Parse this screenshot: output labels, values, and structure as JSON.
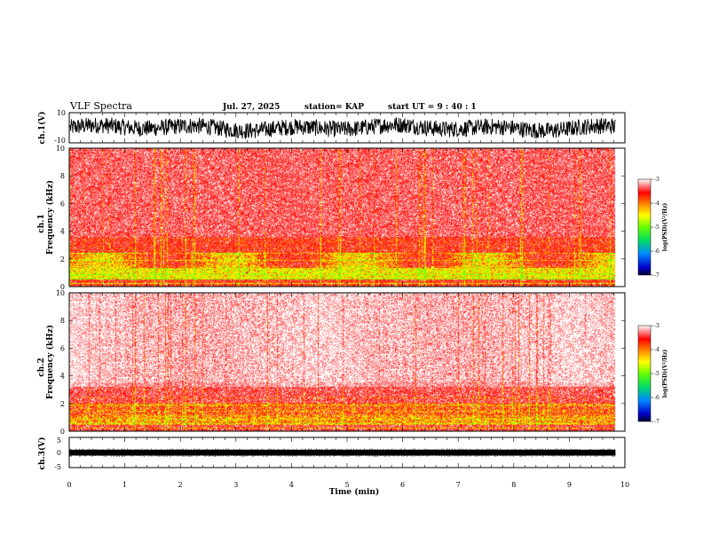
{
  "header": {
    "title": "VLF Spectra",
    "date": "Jul. 27, 2025",
    "station": "station= KAP",
    "start": "start UT =   9 : 40 : 1"
  },
  "chart_data": [
    {
      "type": "line",
      "id": "ch1_waveform",
      "ylabel": "ch.1(V)",
      "ylim": [
        -10,
        10
      ],
      "yticks": [
        "10",
        "-10"
      ]
    },
    {
      "type": "heatmap",
      "id": "ch1_spectrogram",
      "ylabel_channel": "ch.1",
      "ylabel": "Frequency (kHz)",
      "ylim": [
        0,
        10
      ],
      "yticks": [
        "0",
        "2",
        "4",
        "6",
        "8",
        "10"
      ],
      "colorbar": {
        "label": "log(PSD)(V²/Hz)",
        "range": [
          -7,
          -3
        ],
        "ticks": [
          "-3",
          "-4",
          "-5",
          "-6",
          "-7"
        ]
      }
    },
    {
      "type": "heatmap",
      "id": "ch2_spectrogram",
      "ylabel_channel": "ch.2",
      "ylabel": "Frequency (kHz)",
      "ylim": [
        0,
        10
      ],
      "yticks": [
        "0",
        "2",
        "4",
        "6",
        "8",
        "10"
      ],
      "colorbar": {
        "label": "log(PSD)(V²/Hz)",
        "range": [
          -7,
          -3
        ],
        "ticks": [
          "-3",
          "-4",
          "-5",
          "-6",
          "-7"
        ]
      }
    },
    {
      "type": "line",
      "id": "ch3_waveform",
      "ylabel": "ch.3(V)",
      "ylim": [
        -5,
        5
      ],
      "yticks": [
        "5",
        "0",
        "-5"
      ]
    }
  ],
  "xaxis": {
    "label": "Time (min)",
    "range": [
      0,
      10
    ],
    "ticks": [
      "0",
      "1",
      "2",
      "3",
      "4",
      "5",
      "6",
      "7",
      "8",
      "9",
      "10"
    ]
  },
  "colors": {
    "red": "#ff0000",
    "yellow": "#ffff00",
    "green": "#66ff00",
    "trace": "#000000"
  }
}
